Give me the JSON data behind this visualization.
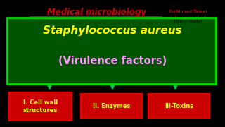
{
  "bg_color": "#000000",
  "title_text": "Medical microbiology",
  "title_color": "#cc0000",
  "watermark_line1": "Dr/Ahmed Talaat",
  "watermark_line2": "[Micro study]",
  "main_box_bg": "#005500",
  "main_box_border": "#00dd00",
  "main_title": "Staphylococcus aureus",
  "main_title_color": "#ffff00",
  "main_subtitle": "(Virulence factors)",
  "main_subtitle_color": "#ff99ff",
  "arrow_color": "#00cc44",
  "sub_labels": [
    "I. Cell wall\nstructures",
    "II. Enzymes",
    "III-Toxins"
  ],
  "sub_box_bg": "#cc0000",
  "sub_box_border": "#dd0000",
  "sub_text_color": "#ffff00"
}
